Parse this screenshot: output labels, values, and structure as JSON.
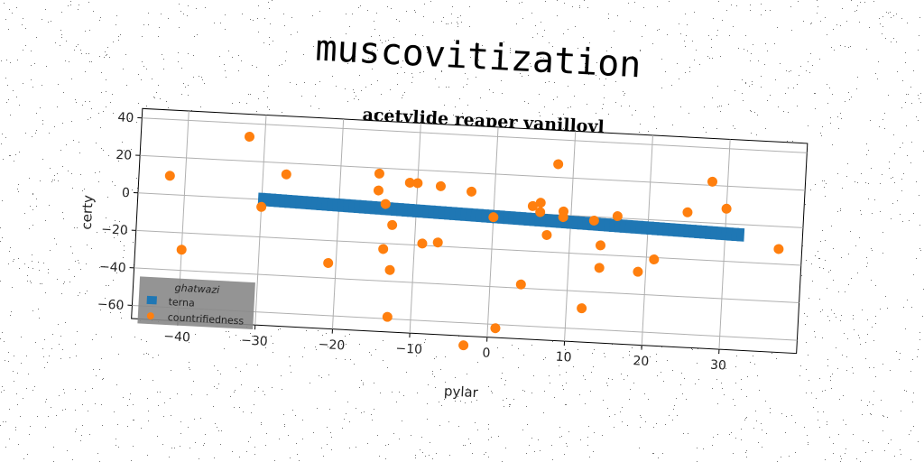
{
  "suptitle": "muscovitization",
  "chart_data": {
    "type": "scatter",
    "title": "acetylide reaper vanilloyl",
    "xlabel": "pylar",
    "ylabel": "certy",
    "xlim": [
      -46,
      40
    ],
    "ylim": [
      -67,
      45
    ],
    "xticks": [
      -40,
      -30,
      -20,
      -10,
      0,
      10,
      20,
      30
    ],
    "yticks": [
      -60,
      -40,
      -20,
      0,
      20,
      40
    ],
    "grid": true,
    "legend": {
      "title": "ghatwazi",
      "placement": "lower-left"
    },
    "series": [
      {
        "name": "terna",
        "marker": "square",
        "color": "#1f77b4",
        "x_range": [
          -30,
          32
        ],
        "y_start": 0,
        "y_end": -5.5,
        "band_height": 7
      },
      {
        "name": "countrifiedness",
        "marker": "circle",
        "color": "#ff7f0e",
        "points": [
          [
            -42,
            10
          ],
          [
            -32,
            33
          ],
          [
            -27,
            14
          ],
          [
            -30,
            -4
          ],
          [
            -40,
            -29
          ],
          [
            -21,
            -32
          ],
          [
            -15,
            17
          ],
          [
            -15,
            8
          ],
          [
            -14,
            1
          ],
          [
            -13,
            -10
          ],
          [
            -14,
            -23
          ],
          [
            -13,
            -34
          ],
          [
            -11,
            13
          ],
          [
            -10,
            13
          ],
          [
            -7,
            12
          ],
          [
            -9,
            -19
          ],
          [
            -7,
            -18
          ],
          [
            -3,
            10
          ],
          [
            0,
            -3
          ],
          [
            -13,
            -59
          ],
          [
            -3,
            -72
          ],
          [
            1,
            -62
          ],
          [
            4,
            -38
          ],
          [
            5,
            4
          ],
          [
            6,
            6
          ],
          [
            6,
            1
          ],
          [
            8,
            27
          ],
          [
            9,
            2
          ],
          [
            9,
            -1
          ],
          [
            7,
            -11
          ],
          [
            13,
            -2
          ],
          [
            14,
            -15
          ],
          [
            14,
            -27
          ],
          [
            12,
            -49
          ],
          [
            16,
            1
          ],
          [
            19,
            -28
          ],
          [
            21,
            -21
          ],
          [
            25,
            5
          ],
          [
            28,
            22
          ],
          [
            30,
            8
          ],
          [
            37,
            -12
          ]
        ]
      }
    ]
  }
}
